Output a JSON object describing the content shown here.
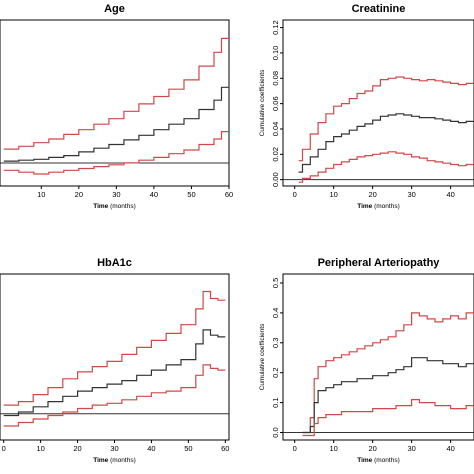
{
  "colors": {
    "estimate": "#333333",
    "ci": "#d04848",
    "zero_line": "#333333",
    "axis": "#000000"
  },
  "chart_data": [
    {
      "type": "line",
      "title": "Age",
      "xlabel": "Time",
      "xlabel_unit": "(months)",
      "ylabel": "",
      "xlim": [
        -1,
        60
      ],
      "ylim": [
        -0.25,
        1.55
      ],
      "xticks": [
        {
          "v": 10,
          "t": "10"
        },
        {
          "v": 20,
          "t": "20"
        },
        {
          "v": 30,
          "t": "30"
        },
        {
          "v": 40,
          "t": "40"
        },
        {
          "v": 50,
          "t": "50"
        },
        {
          "v": 60,
          "t": "60"
        }
      ],
      "yticks": [],
      "hline": 0,
      "step": true,
      "series": [
        {
          "role": "upper",
          "x": [
            0,
            4,
            8,
            12,
            16,
            20,
            24,
            28,
            32,
            36,
            40,
            44,
            48,
            52,
            56,
            58
          ],
          "y": [
            0.15,
            0.18,
            0.22,
            0.26,
            0.31,
            0.36,
            0.42,
            0.48,
            0.56,
            0.64,
            0.72,
            0.8,
            0.9,
            1.05,
            1.2,
            1.35
          ]
        },
        {
          "role": "estimate",
          "x": [
            0,
            4,
            8,
            12,
            16,
            20,
            24,
            28,
            32,
            36,
            40,
            44,
            48,
            52,
            56,
            58
          ],
          "y": [
            0.02,
            0.03,
            0.04,
            0.06,
            0.08,
            0.12,
            0.16,
            0.2,
            0.25,
            0.3,
            0.36,
            0.42,
            0.48,
            0.58,
            0.68,
            0.82
          ]
        },
        {
          "role": "lower",
          "x": [
            0,
            4,
            8,
            12,
            16,
            20,
            24,
            28,
            32,
            36,
            40,
            44,
            48,
            52,
            56,
            58
          ],
          "y": [
            -0.08,
            -0.1,
            -0.12,
            -0.1,
            -0.08,
            -0.06,
            -0.04,
            -0.02,
            0.0,
            0.03,
            0.06,
            0.1,
            0.14,
            0.2,
            0.26,
            0.34
          ]
        }
      ]
    },
    {
      "type": "line",
      "title": "Creatinine",
      "xlabel": "Time",
      "xlabel_unit": "(months)",
      "ylabel": "Cumulative coefficients",
      "xlim": [
        -3,
        46
      ],
      "ylim": [
        -0.005,
        0.126
      ],
      "xticks": [
        {
          "v": 0,
          "t": "0"
        },
        {
          "v": 10,
          "t": "10"
        },
        {
          "v": 20,
          "t": "20"
        },
        {
          "v": 30,
          "t": "30"
        },
        {
          "v": 40,
          "t": "40"
        }
      ],
      "yticks": [
        {
          "v": 0.0,
          "t": "0.00"
        },
        {
          "v": 0.02,
          "t": "0.02"
        },
        {
          "v": 0.04,
          "t": "0.04"
        },
        {
          "v": 0.06,
          "t": "0.06"
        },
        {
          "v": 0.08,
          "t": "0.08"
        },
        {
          "v": 0.1,
          "t": "0.10"
        },
        {
          "v": 0.12,
          "t": "0.12"
        }
      ],
      "hline": 0,
      "step": true,
      "series": [
        {
          "role": "upper",
          "x": [
            1,
            2,
            4,
            6,
            8,
            10,
            12,
            14,
            16,
            18,
            20,
            22,
            24,
            26,
            28,
            30,
            32,
            34,
            36,
            38,
            40,
            42,
            44
          ],
          "y": [
            0.015,
            0.024,
            0.036,
            0.045,
            0.052,
            0.058,
            0.06,
            0.064,
            0.068,
            0.07,
            0.074,
            0.079,
            0.08,
            0.081,
            0.08,
            0.079,
            0.078,
            0.079,
            0.078,
            0.077,
            0.076,
            0.075,
            0.076
          ]
        },
        {
          "role": "estimate",
          "x": [
            1,
            2,
            4,
            6,
            8,
            10,
            12,
            14,
            16,
            18,
            20,
            22,
            24,
            26,
            28,
            30,
            32,
            34,
            36,
            38,
            40,
            42,
            44
          ],
          "y": [
            0.006,
            0.012,
            0.018,
            0.024,
            0.03,
            0.034,
            0.036,
            0.039,
            0.042,
            0.044,
            0.047,
            0.05,
            0.051,
            0.052,
            0.051,
            0.05,
            0.049,
            0.049,
            0.048,
            0.047,
            0.046,
            0.045,
            0.046
          ]
        },
        {
          "role": "lower",
          "x": [
            1,
            2,
            4,
            6,
            8,
            10,
            12,
            14,
            16,
            18,
            20,
            22,
            24,
            26,
            28,
            30,
            32,
            34,
            36,
            38,
            40,
            42,
            44
          ],
          "y": [
            -0.002,
            0.001,
            0.003,
            0.006,
            0.009,
            0.012,
            0.014,
            0.016,
            0.018,
            0.019,
            0.02,
            0.021,
            0.022,
            0.021,
            0.02,
            0.018,
            0.017,
            0.015,
            0.014,
            0.013,
            0.012,
            0.011,
            0.012
          ]
        }
      ]
    },
    {
      "type": "line",
      "title": "HbA1c",
      "xlabel": "Time",
      "xlabel_unit": "(months)",
      "ylabel": "",
      "xlim": [
        -1,
        61
      ],
      "ylim": [
        -0.3,
        1.6
      ],
      "xticks": [
        {
          "v": 0,
          "t": "0"
        },
        {
          "v": 10,
          "t": "10"
        },
        {
          "v": 20,
          "t": "20"
        },
        {
          "v": 30,
          "t": "30"
        },
        {
          "v": 40,
          "t": "40"
        },
        {
          "v": 50,
          "t": "50"
        },
        {
          "v": 60,
          "t": "60"
        }
      ],
      "yticks": [],
      "hline": 0,
      "step": true,
      "series": [
        {
          "role": "upper",
          "x": [
            0,
            4,
            8,
            12,
            16,
            20,
            24,
            28,
            32,
            36,
            40,
            44,
            48,
            52,
            54,
            56,
            58
          ],
          "y": [
            0.1,
            0.14,
            0.22,
            0.3,
            0.4,
            0.48,
            0.54,
            0.6,
            0.68,
            0.76,
            0.84,
            0.92,
            1.02,
            1.2,
            1.4,
            1.32,
            1.3
          ]
        },
        {
          "role": "estimate",
          "x": [
            0,
            4,
            8,
            12,
            16,
            20,
            24,
            28,
            32,
            36,
            40,
            44,
            48,
            52,
            54,
            56,
            58
          ],
          "y": [
            -0.02,
            0.02,
            0.08,
            0.14,
            0.2,
            0.26,
            0.3,
            0.34,
            0.38,
            0.44,
            0.5,
            0.56,
            0.62,
            0.8,
            0.96,
            0.9,
            0.88
          ]
        },
        {
          "role": "lower",
          "x": [
            0,
            4,
            8,
            12,
            16,
            20,
            24,
            28,
            32,
            36,
            40,
            44,
            48,
            52,
            54,
            56,
            58
          ],
          "y": [
            -0.14,
            -0.1,
            -0.06,
            -0.02,
            0.02,
            0.06,
            0.1,
            0.12,
            0.16,
            0.2,
            0.24,
            0.26,
            0.3,
            0.44,
            0.56,
            0.52,
            0.5
          ]
        }
      ]
    },
    {
      "type": "line",
      "title": "Peripheral Arteriopathy",
      "xlabel": "Time",
      "xlabel_unit": "(months)",
      "ylabel": "Cumulative coefficients",
      "xlim": [
        -3,
        46
      ],
      "ylim": [
        -0.025,
        0.53
      ],
      "xticks": [
        {
          "v": 0,
          "t": "0"
        },
        {
          "v": 10,
          "t": "10"
        },
        {
          "v": 20,
          "t": "20"
        },
        {
          "v": 30,
          "t": "30"
        },
        {
          "v": 40,
          "t": "40"
        }
      ],
      "yticks": [
        {
          "v": 0.0,
          "t": "0.0"
        },
        {
          "v": 0.1,
          "t": "0.1"
        },
        {
          "v": 0.2,
          "t": "0.2"
        },
        {
          "v": 0.3,
          "t": "0.3"
        },
        {
          "v": 0.4,
          "t": "0.4"
        },
        {
          "v": 0.5,
          "t": "0.5"
        }
      ],
      "hline": 0,
      "step": true,
      "series": [
        {
          "role": "upper",
          "x": [
            2,
            4,
            5,
            6,
            8,
            10,
            12,
            14,
            16,
            18,
            20,
            22,
            24,
            26,
            28,
            30,
            32,
            34,
            36,
            38,
            40,
            42,
            44
          ],
          "y": [
            0.0,
            0.05,
            0.18,
            0.22,
            0.24,
            0.25,
            0.26,
            0.27,
            0.28,
            0.29,
            0.3,
            0.31,
            0.32,
            0.34,
            0.36,
            0.4,
            0.39,
            0.38,
            0.37,
            0.38,
            0.39,
            0.38,
            0.4
          ]
        },
        {
          "role": "estimate",
          "x": [
            2,
            4,
            5,
            6,
            8,
            10,
            12,
            14,
            16,
            18,
            20,
            22,
            24,
            26,
            28,
            30,
            32,
            34,
            36,
            38,
            40,
            42,
            44
          ],
          "y": [
            0.0,
            0.02,
            0.1,
            0.14,
            0.15,
            0.16,
            0.17,
            0.17,
            0.18,
            0.18,
            0.19,
            0.19,
            0.2,
            0.21,
            0.22,
            0.25,
            0.25,
            0.24,
            0.24,
            0.23,
            0.23,
            0.22,
            0.23
          ]
        },
        {
          "role": "lower",
          "x": [
            2,
            4,
            5,
            6,
            8,
            10,
            12,
            14,
            16,
            18,
            20,
            22,
            24,
            26,
            28,
            30,
            32,
            34,
            36,
            38,
            40,
            42,
            44
          ],
          "y": [
            -0.01,
            -0.01,
            0.03,
            0.05,
            0.06,
            0.06,
            0.07,
            0.07,
            0.07,
            0.07,
            0.08,
            0.08,
            0.08,
            0.09,
            0.09,
            0.11,
            0.1,
            0.1,
            0.09,
            0.09,
            0.08,
            0.08,
            0.09
          ]
        }
      ]
    }
  ]
}
